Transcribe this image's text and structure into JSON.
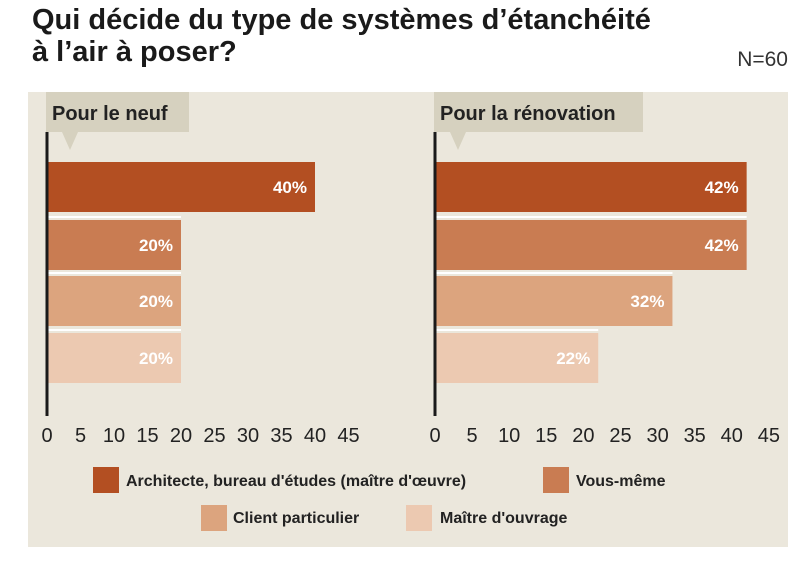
{
  "header": {
    "title_line1": "Qui décide du type de systèmes d’étanchéité",
    "title_line2": "à l’air à poser?",
    "n_label": "N=60"
  },
  "colors": {
    "panel_bg": "#ebe7dc",
    "subtitle_bg": "#d6d1bf",
    "axis": "#1a1a1a",
    "series": [
      "#b34f22",
      "#c97c52",
      "#dca47e",
      "#ecc9b1"
    ]
  },
  "chart_data": [
    {
      "type": "bar",
      "orientation": "horizontal",
      "title": "Pour le neuf",
      "categories": [
        "Architecte, bureau d'études (maître d'œuvre)",
        "Vous-même",
        "Client particulier",
        "Maître d'ouvrage"
      ],
      "values": [
        40,
        20,
        20,
        20
      ],
      "value_labels": [
        "40%",
        "20%",
        "20%",
        "20%"
      ],
      "xlim": [
        0,
        45
      ],
      "xticks": [
        0,
        5,
        10,
        15,
        20,
        25,
        30,
        35,
        40,
        45
      ]
    },
    {
      "type": "bar",
      "orientation": "horizontal",
      "title": "Pour la rénovation",
      "categories": [
        "Architecte, bureau d'études (maître d'œuvre)",
        "Vous-même",
        "Client particulier",
        "Maître d'ouvrage"
      ],
      "values": [
        42,
        42,
        32,
        22
      ],
      "value_labels": [
        "42%",
        "42%",
        "32%",
        "22%"
      ],
      "xlim": [
        0,
        45
      ],
      "xticks": [
        0,
        5,
        10,
        15,
        20,
        25,
        30,
        35,
        40,
        45
      ]
    }
  ],
  "legend": {
    "items": [
      "Architecte, bureau d'études (maître d'œuvre)",
      "Vous-même",
      "Client particulier",
      "Maître d'ouvrage"
    ]
  }
}
